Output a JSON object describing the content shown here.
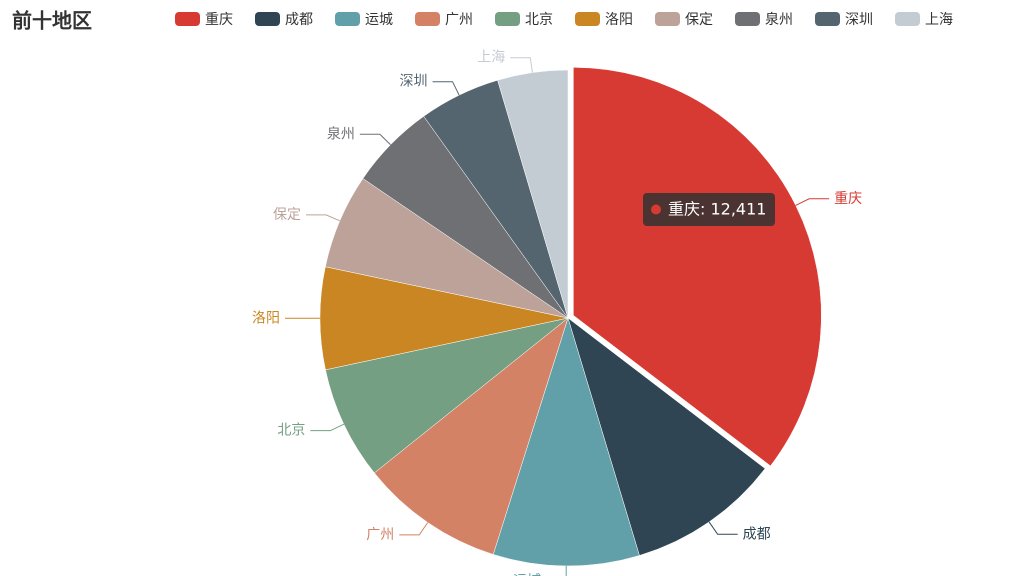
{
  "chart_data": {
    "type": "pie",
    "title": "前十地区",
    "categories": [
      "重庆",
      "成都",
      "运城",
      "广州",
      "北京",
      "洛阳",
      "保定",
      "泉州",
      "深圳",
      "上海"
    ],
    "values": [
      12411,
      3497,
      3341,
      3293,
      2591,
      2338,
      2172,
      1968,
      1860,
      1607
    ],
    "colors": [
      "#d63a33",
      "#2f4554",
      "#61a0a8",
      "#d48265",
      "#749f83",
      "#ca8622",
      "#bda29a",
      "#6e7074",
      "#546570",
      "#c4ccd3"
    ],
    "tooltip": {
      "text": "重庆: 12,411"
    }
  }
}
